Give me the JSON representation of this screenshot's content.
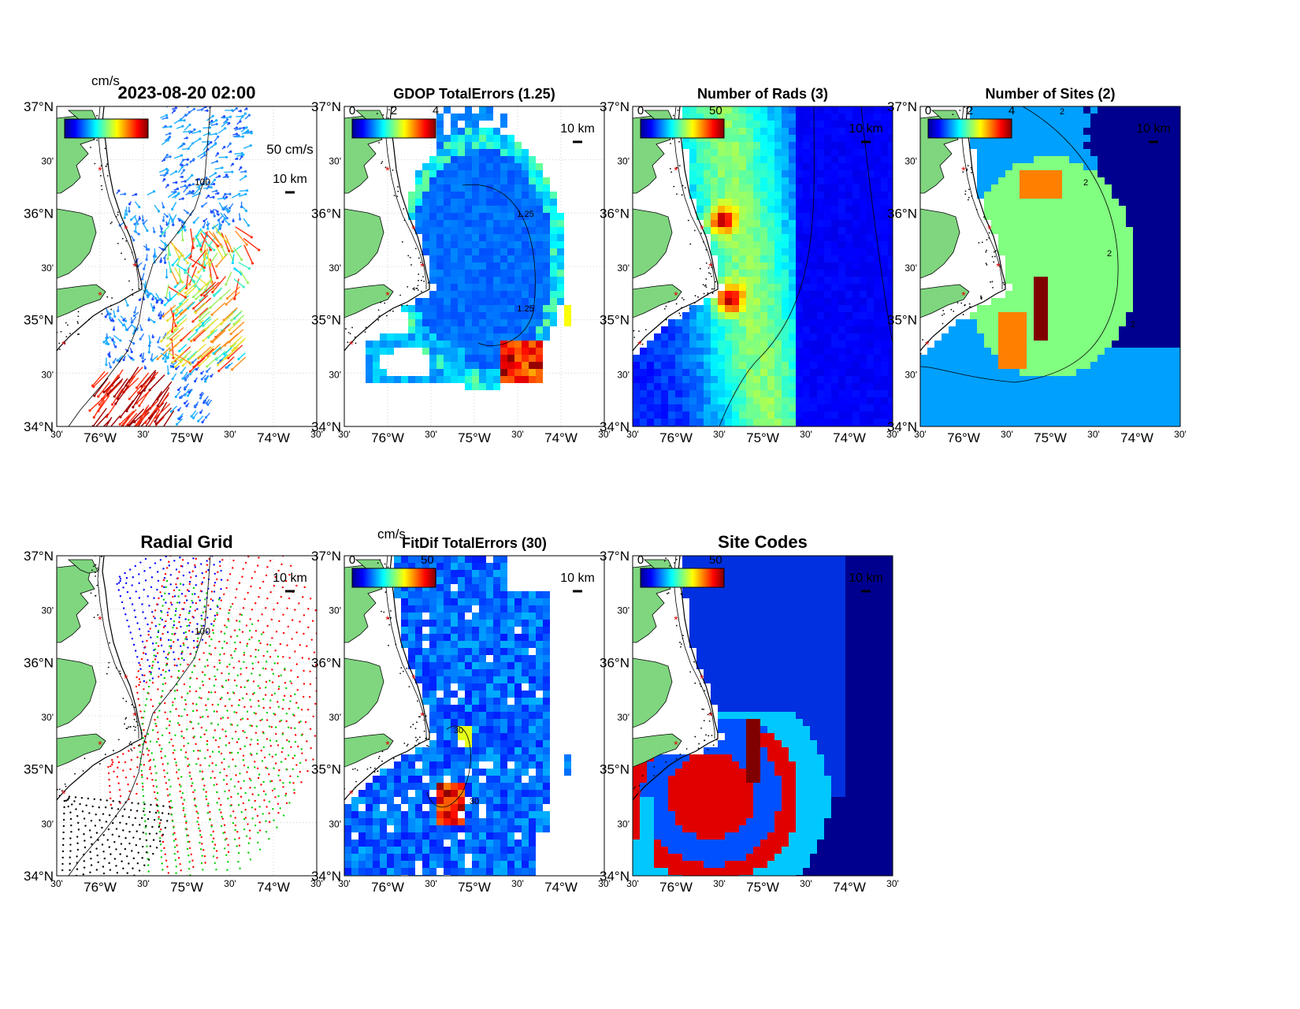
{
  "timestamp": "2023-08-20 02:00",
  "axis_ticks": {
    "lat": [
      "37°N",
      "30'",
      "36°N",
      "30'",
      "35°N",
      "30'",
      "34°N"
    ],
    "lon": [
      "30'",
      "76°W",
      "30'",
      "75°W",
      "30'",
      "74°W",
      "30'"
    ]
  },
  "contour_100": "100",
  "panels": [
    {
      "id": "vectors",
      "title": "2023-08-20 02:00",
      "cbar_unit": "cm/s",
      "cbar_ticks": [],
      "scale_label": "50 cm/s",
      "km_label": "10 km",
      "colors": {
        "land": "#7fd67f"
      }
    },
    {
      "id": "gdop",
      "title": "GDOP TotalErrors (1.25)",
      "cbar_unit": "",
      "cbar_ticks": [
        "0",
        "2",
        "4"
      ],
      "scale_label": "",
      "km_label": "10 km",
      "contour_labels": [
        "1.25",
        "1.25"
      ]
    },
    {
      "id": "nrads",
      "title": "Number of Rads (3)",
      "cbar_unit": "",
      "cbar_ticks": [
        "0",
        "50"
      ],
      "scale_label": "",
      "km_label": "10 km"
    },
    {
      "id": "nsites",
      "title": "Number of Sites (2)",
      "cbar_unit": "",
      "cbar_ticks": [
        "0",
        "2",
        "4"
      ],
      "scale_label": "",
      "km_label": "10 km",
      "contour_labels": [
        "2",
        "2",
        "2",
        "2"
      ]
    },
    {
      "id": "radgrid",
      "title": "Radial Grid",
      "cbar_unit": "",
      "cbar_ticks": [],
      "scale_label": "",
      "km_label": "10 km"
    },
    {
      "id": "fitdif",
      "title": "FitDif TotalErrors (30)",
      "cbar_unit": "cm/s",
      "cbar_ticks": [
        "0",
        "50"
      ],
      "scale_label": "",
      "km_label": "10 km",
      "contour_labels": [
        "30",
        "30"
      ]
    },
    {
      "id": "sitecodes",
      "title": "Site Codes",
      "cbar_unit": "",
      "cbar_ticks": [
        "0",
        "50"
      ],
      "scale_label": "",
      "km_label": "10 km"
    }
  ],
  "map_extent": {
    "lon": [
      -76.5,
      -73.5
    ],
    "lat": [
      34.0,
      37.0
    ]
  },
  "sites": [
    [
      -76.0,
      36.4
    ],
    [
      -75.7,
      35.85
    ],
    [
      -75.6,
      35.5
    ],
    [
      -76.0,
      35.23
    ],
    [
      -76.42,
      34.77
    ]
  ]
}
